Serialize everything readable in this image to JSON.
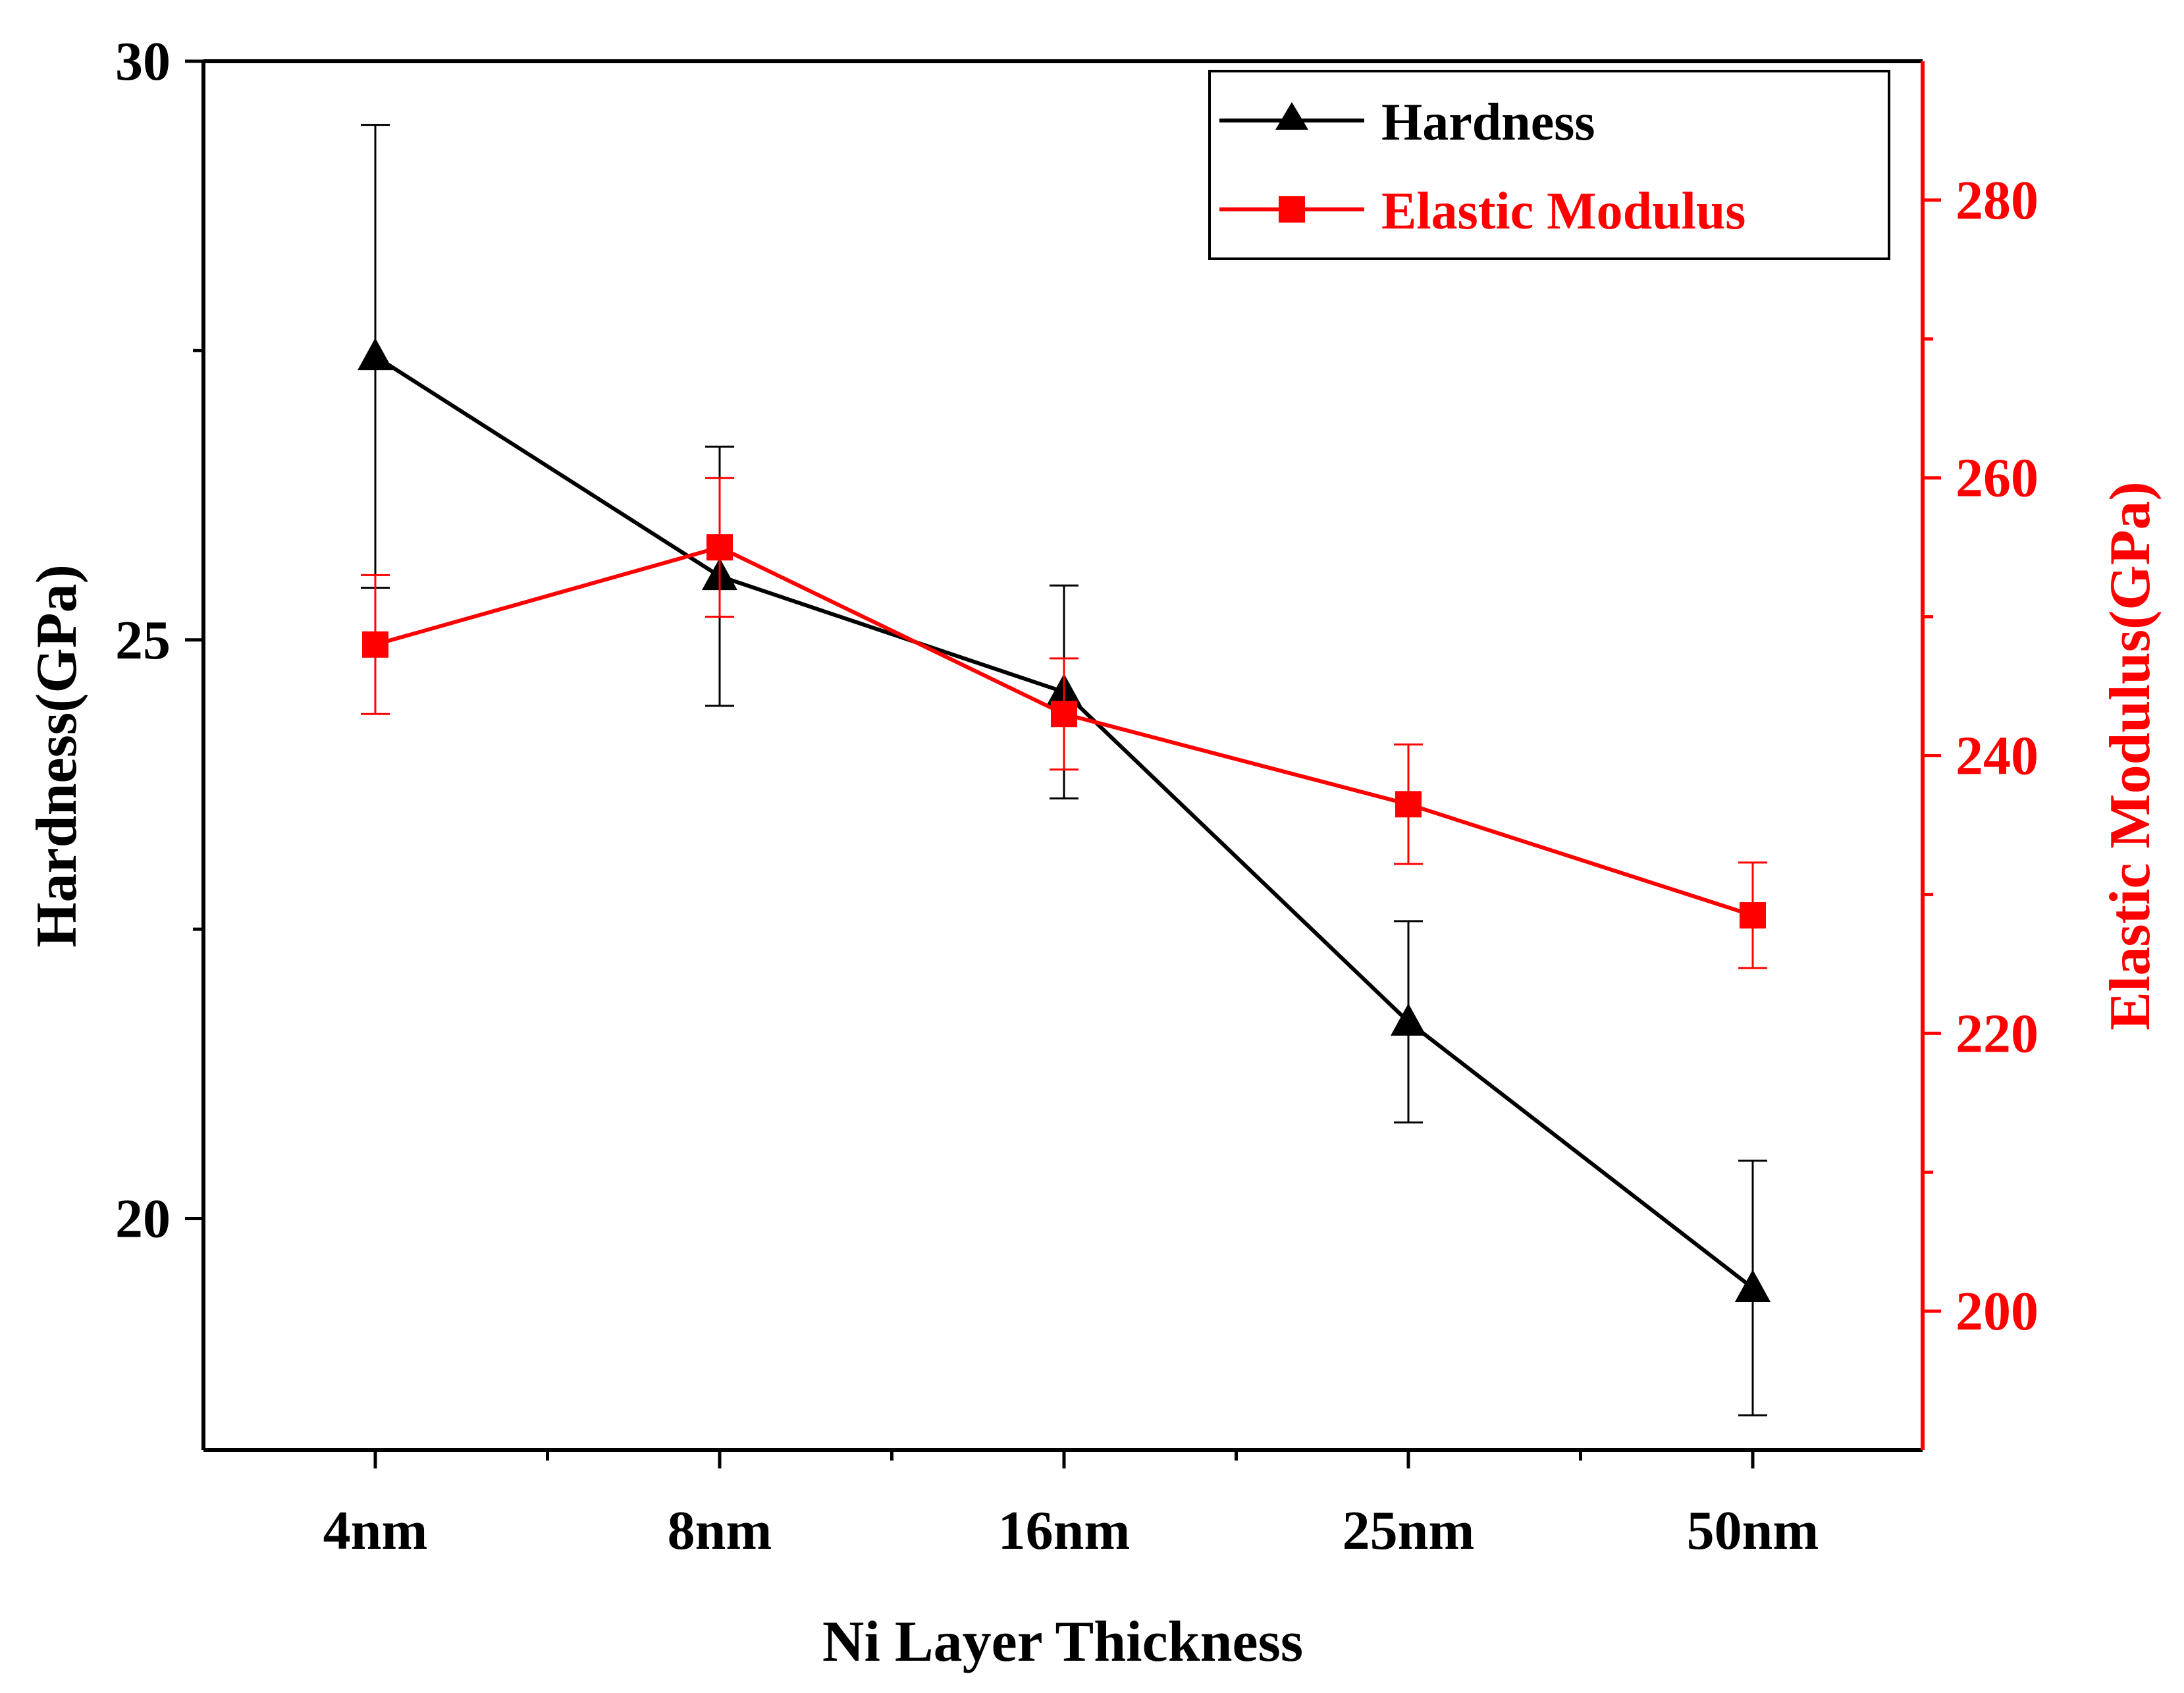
{
  "chart_data": {
    "type": "line",
    "title": "",
    "xlabel": "Ni Layer Thickness",
    "ylabel_left": "Hardness(GPa)",
    "ylabel_right": "Elastic Modulus(GPa)",
    "categories": [
      "4nm",
      "8nm",
      "16nm",
      "25nm",
      "50nm"
    ],
    "y_left": {
      "range": [
        18,
        30
      ],
      "ticks": [
        20,
        25,
        30
      ],
      "minor": [
        22.5,
        27.5
      ]
    },
    "y_right": {
      "range": [
        190,
        290
      ],
      "ticks": [
        200,
        220,
        240,
        260,
        280
      ],
      "minor": [
        210,
        230,
        250,
        270
      ]
    },
    "legend_position": "top-right",
    "series": [
      {
        "name": "Hardness",
        "axis": "left",
        "color": "#000000",
        "marker": "triangle",
        "values": [
          27.45,
          25.55,
          24.55,
          21.7,
          19.4
        ],
        "errors": [
          2.0,
          1.12,
          0.92,
          0.87,
          1.1
        ]
      },
      {
        "name": "Elastic Modulus",
        "axis": "right",
        "color": "#ff0000",
        "marker": "square",
        "values": [
          248,
          255,
          243,
          236.5,
          228.5
        ],
        "errors": [
          5,
          5,
          4,
          4.3,
          3.8
        ]
      }
    ]
  }
}
